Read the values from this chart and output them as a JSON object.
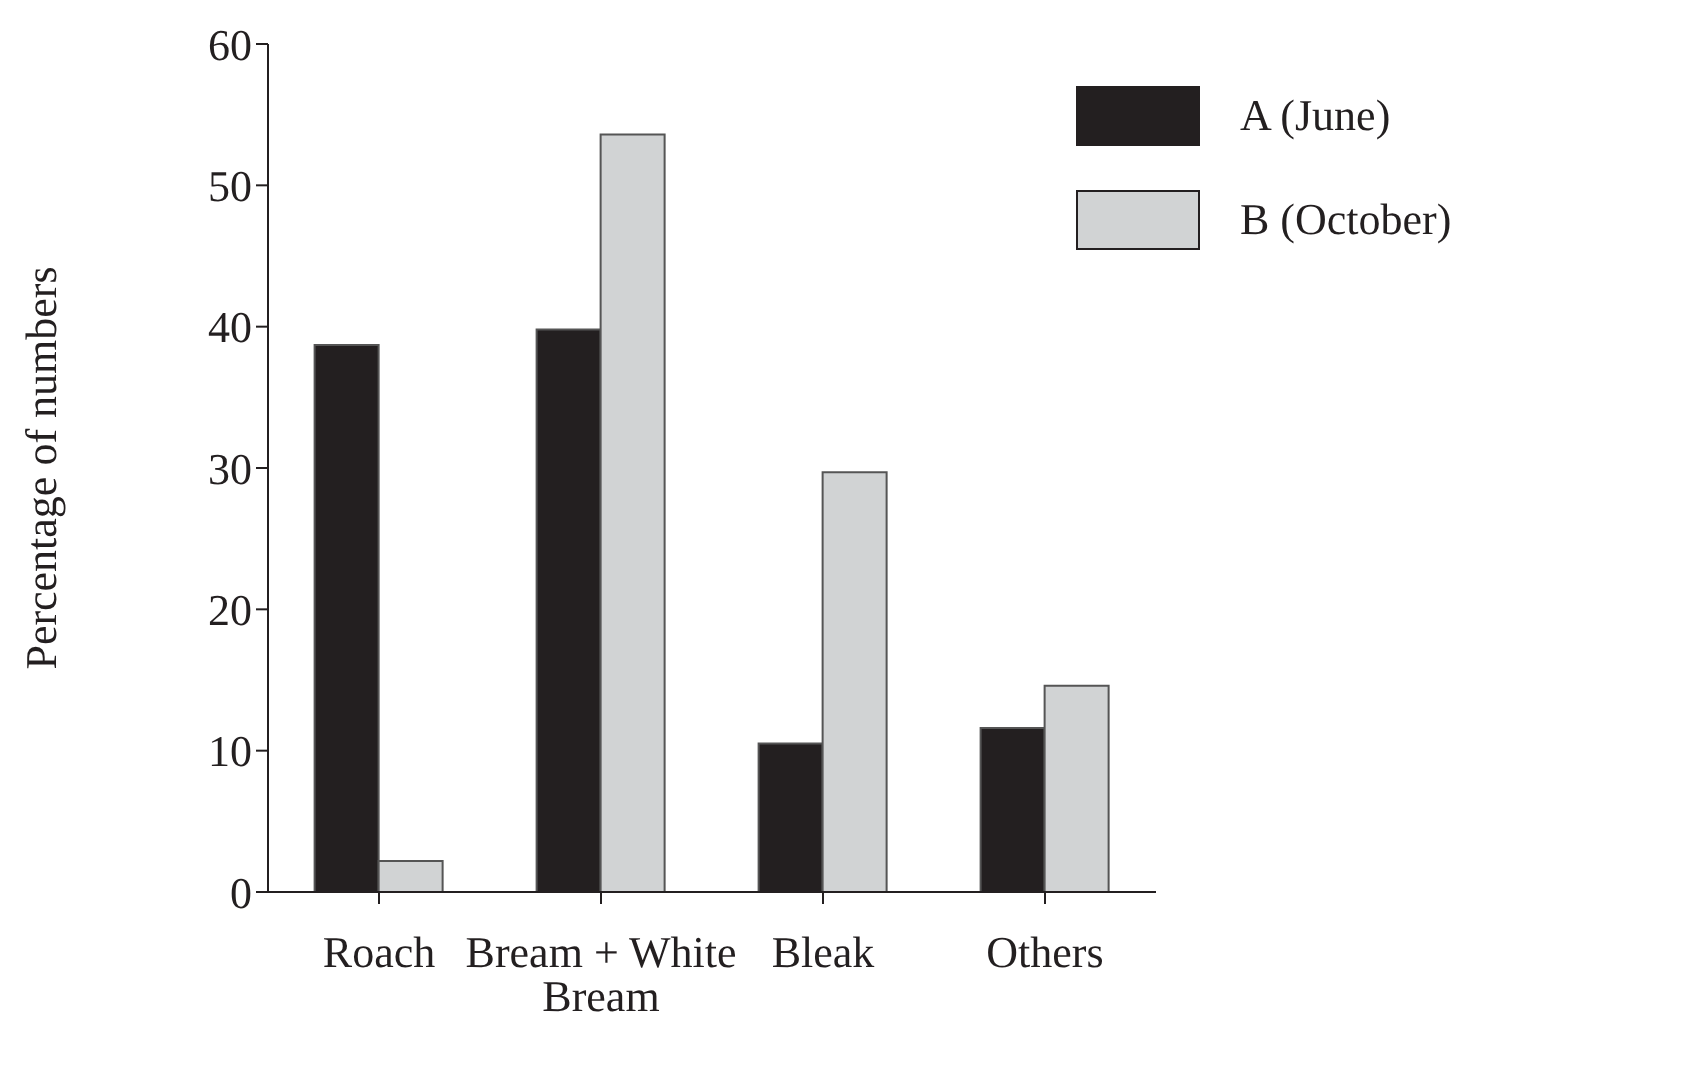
{
  "chart_data": {
    "type": "bar",
    "ylabel": "Percentage of numbers",
    "categories": [
      "Roach",
      "Bream + White Bream",
      "Bleak",
      "Others"
    ],
    "series": [
      {
        "name": "A (June)",
        "color": "#231f20",
        "values": [
          38.7,
          39.8,
          10.5,
          11.6
        ]
      },
      {
        "name": "B (October)",
        "color": "#d1d3d4",
        "values": [
          2.2,
          53.6,
          29.7,
          14.6
        ]
      }
    ],
    "ylim": [
      0,
      60
    ],
    "yticks": [
      0,
      10,
      20,
      30,
      40,
      50,
      60
    ],
    "grid": false,
    "legend": "top right"
  }
}
